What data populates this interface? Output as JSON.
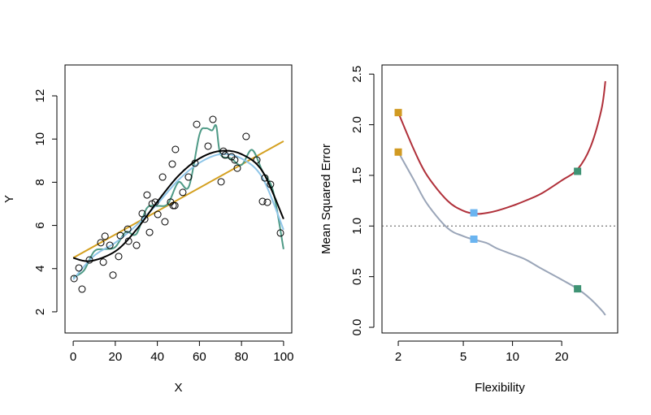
{
  "chart_data": [
    {
      "type": "scatter",
      "x_label": "X",
      "y_label": "Y",
      "xlim": [
        -3.9,
        103.9
      ],
      "ylim": [
        1.02,
        13.43
      ],
      "xticks": [
        0,
        20,
        40,
        60,
        80,
        100
      ],
      "yticks": [
        2,
        4,
        6,
        8,
        10,
        12
      ],
      "point_color": "#000000",
      "x": [
        0.4,
        2.7,
        4.2,
        7.7,
        13.1,
        14.3,
        15.1,
        17.4,
        18.9,
        21.6,
        22.4,
        25.9,
        26.3,
        30.1,
        32.8,
        34,
        35.1,
        36.3,
        37.5,
        39,
        40.2,
        42.5,
        43.6,
        46.3,
        47.1,
        47.5,
        48.3,
        48.6,
        52.1,
        54.8,
        57.9,
        58.7,
        64.1,
        66.4,
        70.3,
        71.4,
        72.2,
        75.3,
        76.8,
        78,
        82.2,
        87.3,
        90,
        91.1,
        92.3,
        93.8,
        98.5
      ],
      "values": [
        3.54,
        4.03,
        3.05,
        4.4,
        5.2,
        4.3,
        5.5,
        5.08,
        3.7,
        4.56,
        5.53,
        5.83,
        5.27,
        5.08,
        6.55,
        6.29,
        7.41,
        5.68,
        7.0,
        7.08,
        6.51,
        8.24,
        6.17,
        7.08,
        8.84,
        6.92,
        6.92,
        9.52,
        7.53,
        8.24,
        8.88,
        10.68,
        9.67,
        10.91,
        8.02,
        9.44,
        9.26,
        9.18,
        9.03,
        8.65,
        10.12,
        9.03,
        7.11,
        8.2,
        7.07,
        7.9,
        5.65
      ],
      "lines": [
        {
          "color": "#d4a020",
          "x": [
            0,
            100
          ],
          "values": [
            4.5,
            9.9
          ]
        },
        {
          "color": "#4e9a86",
          "x": [
            0,
            5,
            10,
            15,
            20,
            25,
            30,
            35,
            40,
            45,
            50,
            55,
            60,
            63,
            66,
            68,
            70,
            75,
            80,
            85,
            90,
            95,
            100
          ],
          "values": [
            3.6,
            3.9,
            4.8,
            4.9,
            5.0,
            5.7,
            5.6,
            6.8,
            6.9,
            7.0,
            8.0,
            7.8,
            10.2,
            10.5,
            10.4,
            10.6,
            9.3,
            9.1,
            8.8,
            9.5,
            8.5,
            7.6,
            4.9
          ]
        },
        {
          "color": "#8ec5e8",
          "x": [
            0,
            10,
            20,
            30,
            40,
            50,
            60,
            70,
            80,
            90,
            100
          ],
          "values": [
            3.5,
            4.6,
            5.2,
            6.0,
            7.0,
            8.1,
            8.9,
            9.3,
            9.1,
            8.2,
            5.8
          ]
        },
        {
          "color": "#000000",
          "x": [
            0,
            8,
            20,
            30,
            40,
            50,
            60,
            70,
            80,
            90,
            100
          ],
          "values": [
            4.5,
            4.35,
            4.8,
            5.8,
            7.1,
            8.3,
            9.1,
            9.45,
            9.3,
            8.5,
            6.3
          ]
        }
      ]
    },
    {
      "type": "line",
      "x_label": "Flexibility",
      "y_label": "Mean Squared Error",
      "xscale": "log",
      "xlim": [
        1.59,
        44
      ],
      "ylim": [
        -0.056,
        2.59
      ],
      "xticks": [
        2,
        5,
        10,
        20
      ],
      "yticks": [
        {
          "value": 0,
          "label": "0.0"
        },
        {
          "value": 0.5,
          "label": "0.5"
        },
        {
          "value": 1,
          "label": "1.0"
        },
        {
          "value": 1.5,
          "label": "1.5"
        },
        {
          "value": 2,
          "label": "2.0"
        },
        {
          "value": 2.5,
          "label": "2.5"
        }
      ],
      "hline": 1.0,
      "series": [
        {
          "color": "#b0303a",
          "x": [
            2,
            2.5,
            3,
            4,
            5,
            6,
            7,
            8,
            10,
            12,
            15,
            20,
            25,
            30,
            35,
            37
          ],
          "values": [
            2.12,
            1.75,
            1.5,
            1.25,
            1.15,
            1.12,
            1.13,
            1.15,
            1.2,
            1.25,
            1.32,
            1.45,
            1.56,
            1.78,
            2.15,
            2.43
          ]
        },
        {
          "color": "#9aa5b8",
          "x": [
            2,
            2.5,
            3,
            4,
            5,
            6,
            7,
            8,
            10,
            12,
            15,
            20,
            25,
            30,
            35,
            37
          ],
          "values": [
            1.73,
            1.45,
            1.22,
            0.98,
            0.9,
            0.86,
            0.83,
            0.78,
            0.72,
            0.67,
            0.58,
            0.47,
            0.38,
            0.28,
            0.17,
            0.12
          ]
        }
      ],
      "markers": [
        {
          "color": "#d19a22",
          "x": [
            2,
            2
          ],
          "values": [
            2.12,
            1.73
          ]
        },
        {
          "color": "#6ab4f0",
          "x": [
            5.8,
            5.8
          ],
          "values": [
            1.13,
            0.87
          ]
        },
        {
          "color": "#3f9374",
          "x": [
            25,
            25
          ],
          "values": [
            1.54,
            0.38
          ]
        }
      ]
    }
  ]
}
